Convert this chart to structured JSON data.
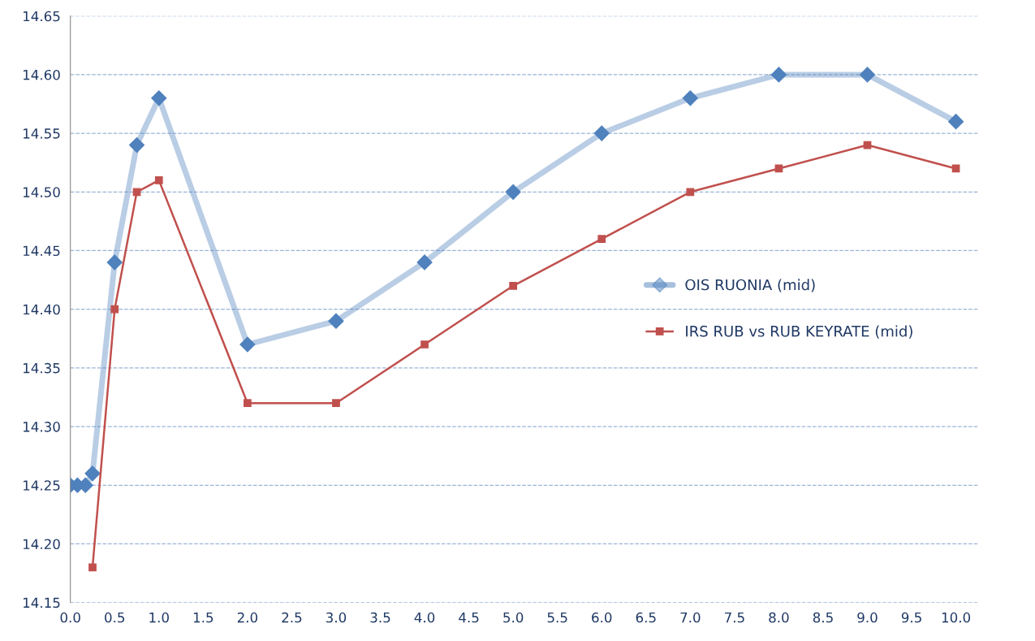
{
  "chart_data": {
    "type": "line",
    "xlim": [
      0,
      10.25
    ],
    "ylim": [
      14.15,
      14.65
    ],
    "xticks": [
      {
        "value": 0,
        "label": "0.0"
      },
      {
        "value": 0.5,
        "label": "0.5"
      },
      {
        "value": 1,
        "label": "1.0"
      },
      {
        "value": 1.5,
        "label": "1.5"
      },
      {
        "value": 2,
        "label": "2.0"
      },
      {
        "value": 2.5,
        "label": "2.5"
      },
      {
        "value": 3,
        "label": "3.0"
      },
      {
        "value": 3.5,
        "label": "3.5"
      },
      {
        "value": 4,
        "label": "4.0"
      },
      {
        "value": 4.5,
        "label": "4.5"
      },
      {
        "value": 5,
        "label": "5.0"
      },
      {
        "value": 5.5,
        "label": "5.5"
      },
      {
        "value": 6,
        "label": "6.0"
      },
      {
        "value": 6.5,
        "label": "6.5"
      },
      {
        "value": 7,
        "label": "7.0"
      },
      {
        "value": 7.5,
        "label": "7.5"
      },
      {
        "value": 8,
        "label": "8.0"
      },
      {
        "value": 8.5,
        "label": "8.5"
      },
      {
        "value": 9,
        "label": "9.0"
      },
      {
        "value": 9.5,
        "label": "9.5"
      },
      {
        "value": 10,
        "label": "10.0"
      }
    ],
    "yticks": [
      {
        "value": 14.15,
        "label": "14.15"
      },
      {
        "value": 14.2,
        "label": "14.20"
      },
      {
        "value": 14.25,
        "label": "14.25"
      },
      {
        "value": 14.3,
        "label": "14.30"
      },
      {
        "value": 14.35,
        "label": "14.35"
      },
      {
        "value": 14.4,
        "label": "14.40"
      },
      {
        "value": 14.45,
        "label": "14.45"
      },
      {
        "value": 14.5,
        "label": "14.50"
      },
      {
        "value": 14.55,
        "label": "14.55"
      },
      {
        "value": 14.6,
        "label": "14.60"
      },
      {
        "value": 14.65,
        "label": "14.65"
      }
    ],
    "grid": "y",
    "legend": "right",
    "series": [
      {
        "name": "OIS RUONIA (mid)",
        "color": "#4f81bd",
        "marker": "diamond",
        "x": [
          0,
          0.08,
          0.17,
          0.25,
          0.5,
          0.75,
          1,
          2,
          3,
          4,
          5,
          6,
          7,
          8,
          9,
          10
        ],
        "values": [
          14.25,
          14.25,
          14.25,
          14.26,
          14.44,
          14.54,
          14.58,
          14.37,
          14.39,
          14.44,
          14.5,
          14.55,
          14.58,
          14.6,
          14.6,
          14.56
        ]
      },
      {
        "name": "IRS RUB vs RUB KEYRATE (mid)",
        "color": "#c0504d",
        "marker": "square",
        "x": [
          0.25,
          0.5,
          0.75,
          1,
          2,
          3,
          4,
          5,
          6,
          7,
          8,
          9,
          10
        ],
        "values": [
          14.18,
          14.4,
          14.5,
          14.51,
          14.32,
          14.32,
          14.37,
          14.42,
          14.46,
          14.5,
          14.52,
          14.54,
          14.52
        ]
      }
    ]
  }
}
